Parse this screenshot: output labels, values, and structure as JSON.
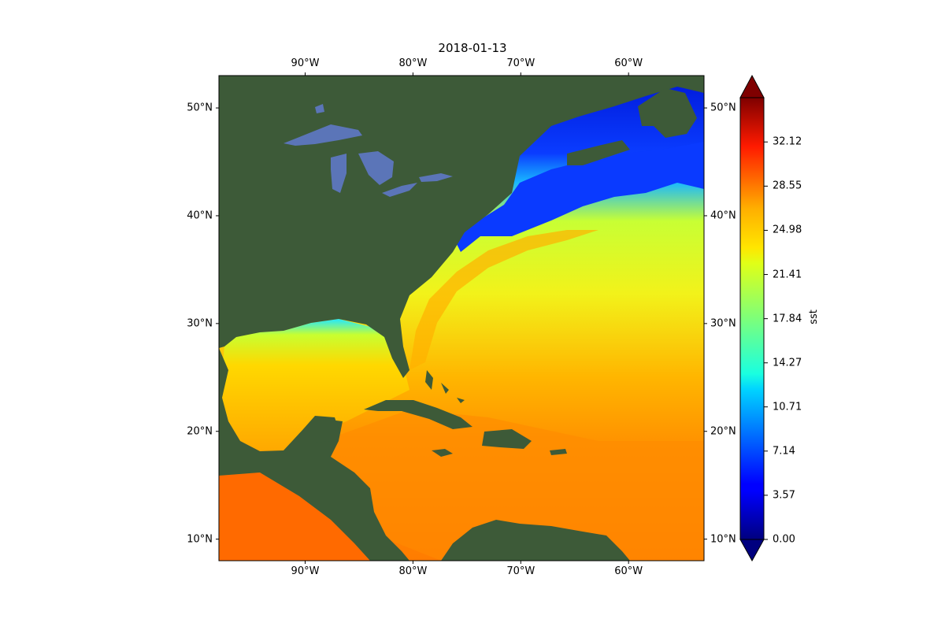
{
  "map": {
    "title": "2018-01-13",
    "projection": "PlateCarree",
    "extent": {
      "lon_min": -98,
      "lon_max": -53,
      "lat_min": 8,
      "lat_max": 53
    },
    "lon_ticks": [
      -90,
      -80,
      -70,
      -60
    ],
    "lon_tick_labels": [
      "90°W",
      "80°W",
      "70°W",
      "60°W"
    ],
    "lat_ticks": [
      10,
      20,
      30,
      40,
      50
    ],
    "lat_tick_labels": [
      "10°N",
      "20°N",
      "30°N",
      "40°N",
      "50°N"
    ],
    "basemap": "satellite imagery",
    "colors": {
      "land": "#3d5a38",
      "lakes": "#5b75b8"
    }
  },
  "colorbar": {
    "label": "sst",
    "colormap": "jet",
    "range": [
      0.0,
      35.7
    ],
    "extend": "both",
    "tick_values": [
      0.0,
      3.57,
      7.14,
      10.71,
      14.27,
      17.84,
      21.41,
      24.98,
      28.55,
      32.12
    ],
    "tick_labels": [
      "0.00",
      "3.57",
      "7.14",
      "10.71",
      "14.27",
      "17.84",
      "21.41",
      "24.98",
      "28.55",
      "32.12"
    ]
  }
}
